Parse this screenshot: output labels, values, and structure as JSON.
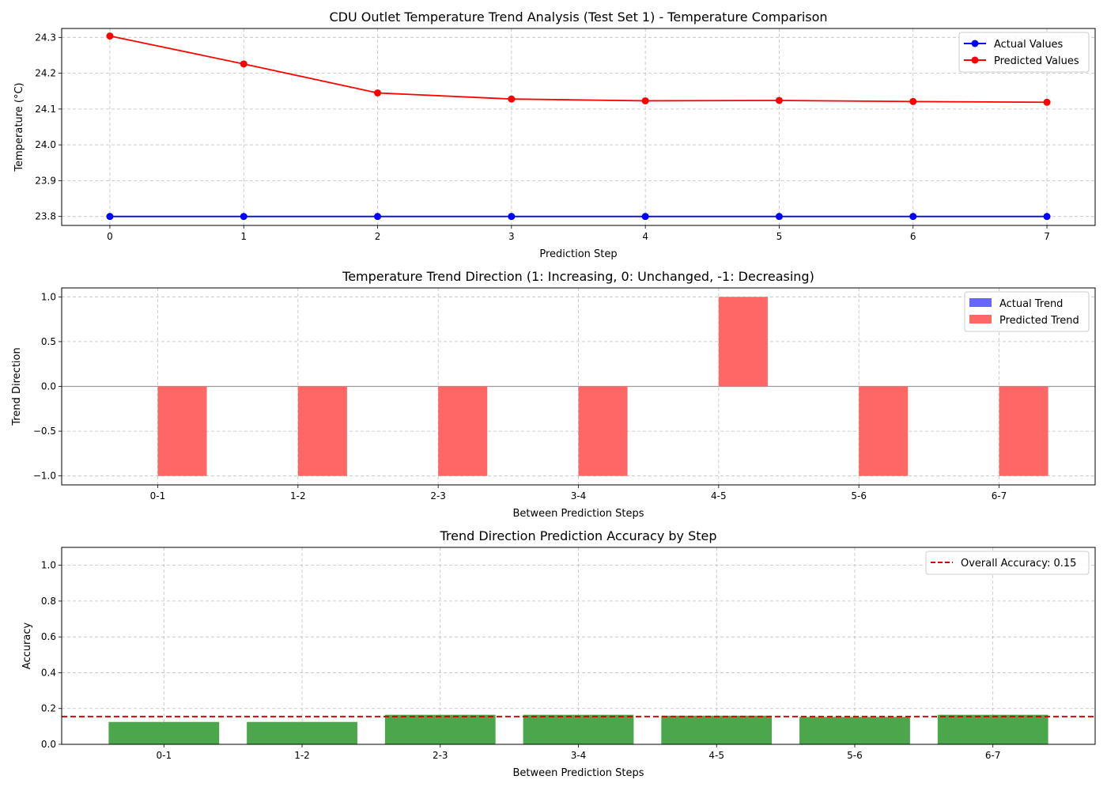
{
  "chart_data": [
    {
      "type": "line",
      "title": "CDU Outlet Temperature Trend Analysis (Test Set 1) - Temperature Comparison",
      "xlabel": "Prediction Step",
      "ylabel": "Temperature (°C)",
      "x": [
        0,
        1,
        2,
        3,
        4,
        5,
        6,
        7
      ],
      "xlim": [
        -0.36,
        7.36
      ],
      "ylim": [
        23.775,
        24.325
      ],
      "yticks": [
        23.8,
        23.9,
        24.0,
        24.1,
        24.2,
        24.3
      ],
      "ytick_labels": [
        "23.8",
        "23.9",
        "24.0",
        "24.1",
        "24.2",
        "24.3"
      ],
      "grid": true,
      "legend_position": "upper right",
      "series": [
        {
          "name": "Actual Values",
          "color": "#0000ff",
          "values": [
            23.8,
            23.8,
            23.8,
            23.8,
            23.8,
            23.8,
            23.8,
            23.8
          ]
        },
        {
          "name": "Predicted Values",
          "color": "#ff0000",
          "values": [
            24.304,
            24.226,
            24.145,
            24.128,
            24.123,
            24.124,
            24.121,
            24.119
          ]
        }
      ]
    },
    {
      "type": "bar",
      "title": "Temperature Trend Direction (1: Increasing, 0: Unchanged, -1: Decreasing)",
      "xlabel": "Between Prediction Steps",
      "ylabel": "Trend Direction",
      "categories": [
        "0-1",
        "1-2",
        "2-3",
        "3-4",
        "4-5",
        "5-6",
        "6-7"
      ],
      "xlim": [
        -0.685,
        6.685
      ],
      "ylim": [
        -1.1,
        1.1
      ],
      "yticks": [
        -1.0,
        -0.5,
        0.0,
        0.5,
        1.0
      ],
      "ytick_labels": [
        "−1.0",
        "−0.5",
        "0.0",
        "0.5",
        "1.0"
      ],
      "grid": true,
      "legend_position": "upper right",
      "series": [
        {
          "name": "Actual Trend",
          "color": "#6666ff",
          "values": [
            0,
            0,
            0,
            0,
            0,
            0,
            0
          ]
        },
        {
          "name": "Predicted Trend",
          "color": "#ff6666",
          "values": [
            -1,
            -1,
            -1,
            -1,
            1,
            -1,
            -1
          ]
        }
      ]
    },
    {
      "type": "bar",
      "title": "Trend Direction Prediction Accuracy by Step",
      "xlabel": "Between Prediction Steps",
      "ylabel": "Accuracy",
      "categories": [
        "0-1",
        "1-2",
        "2-3",
        "3-4",
        "4-5",
        "5-6",
        "6-7"
      ],
      "xlim": [
        -0.74,
        6.74
      ],
      "ylim": [
        0,
        1.1
      ],
      "yticks": [
        0.0,
        0.2,
        0.4,
        0.6,
        0.8,
        1.0
      ],
      "ytick_labels": [
        "0.0",
        "0.2",
        "0.4",
        "0.6",
        "0.8",
        "1.0"
      ],
      "grid": true,
      "legend_position": "upper right",
      "series": [
        {
          "name": "",
          "color": "#4ca64c",
          "values": [
            0.125,
            0.125,
            0.165,
            0.165,
            0.16,
            0.153,
            0.165
          ]
        }
      ],
      "reference_line": {
        "name": "Overall Accuracy: 0.15",
        "value": 0.155,
        "color": "#e00000"
      }
    }
  ]
}
